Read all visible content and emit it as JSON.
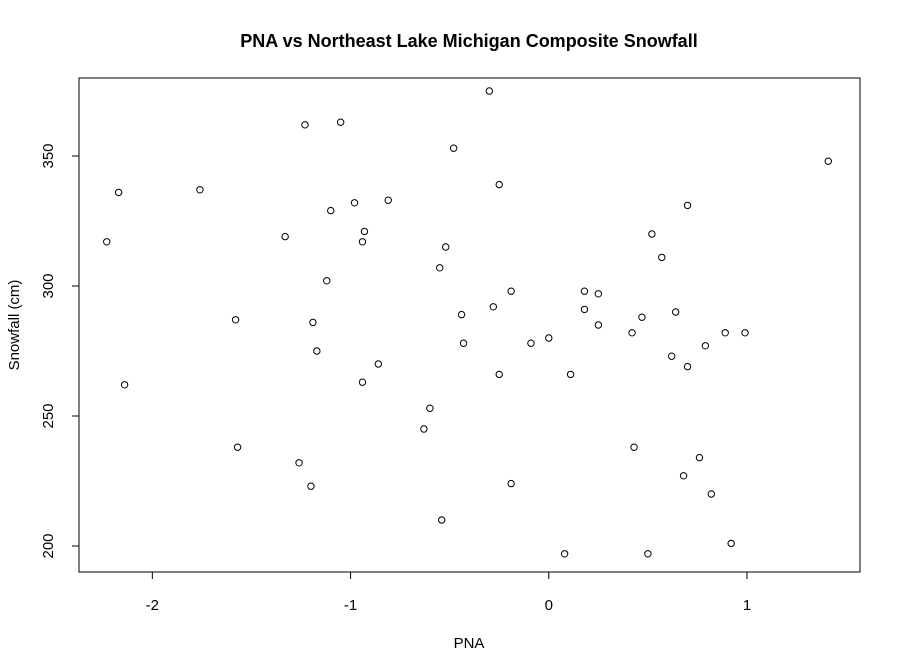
{
  "chart_data": {
    "type": "scatter",
    "title": "PNA vs Northeast Lake Michigan Composite Snowfall",
    "xlabel": "PNA",
    "ylabel": "Snowfall (cm)",
    "xlim": [
      -2.37,
      1.57
    ],
    "ylim": [
      190,
      380
    ],
    "x_ticks": [
      -2,
      -1,
      0,
      1
    ],
    "x_tick_labels": [
      "-2",
      "-1",
      "0",
      "1"
    ],
    "y_ticks": [
      200,
      250,
      300,
      350
    ],
    "y_tick_labels": [
      "200",
      "250",
      "300",
      "350"
    ],
    "grid": false,
    "legend": "none",
    "point_symbol": "open-circle",
    "point_color": "#000000",
    "points": [
      {
        "x": -2.23,
        "y": 317
      },
      {
        "x": -2.17,
        "y": 336
      },
      {
        "x": -2.14,
        "y": 262
      },
      {
        "x": -1.76,
        "y": 337
      },
      {
        "x": -1.58,
        "y": 287
      },
      {
        "x": -1.57,
        "y": 238
      },
      {
        "x": -1.33,
        "y": 319
      },
      {
        "x": -1.26,
        "y": 232
      },
      {
        "x": -1.23,
        "y": 362
      },
      {
        "x": -1.2,
        "y": 223
      },
      {
        "x": -1.19,
        "y": 286
      },
      {
        "x": -1.17,
        "y": 275
      },
      {
        "x": -1.12,
        "y": 302
      },
      {
        "x": -1.1,
        "y": 329
      },
      {
        "x": -1.05,
        "y": 363
      },
      {
        "x": -0.98,
        "y": 332
      },
      {
        "x": -0.94,
        "y": 317
      },
      {
        "x": -0.94,
        "y": 263
      },
      {
        "x": -0.93,
        "y": 321
      },
      {
        "x": -0.86,
        "y": 270
      },
      {
        "x": -0.81,
        "y": 333
      },
      {
        "x": -0.63,
        "y": 245
      },
      {
        "x": -0.6,
        "y": 253
      },
      {
        "x": -0.55,
        "y": 307
      },
      {
        "x": -0.54,
        "y": 210
      },
      {
        "x": -0.52,
        "y": 315
      },
      {
        "x": -0.48,
        "y": 353
      },
      {
        "x": -0.44,
        "y": 289
      },
      {
        "x": -0.43,
        "y": 278
      },
      {
        "x": -0.3,
        "y": 375
      },
      {
        "x": -0.28,
        "y": 292
      },
      {
        "x": -0.25,
        "y": 339
      },
      {
        "x": -0.25,
        "y": 266
      },
      {
        "x": -0.19,
        "y": 298
      },
      {
        "x": -0.19,
        "y": 224
      },
      {
        "x": -0.09,
        "y": 278
      },
      {
        "x": 0.0,
        "y": 280
      },
      {
        "x": 0.08,
        "y": 197
      },
      {
        "x": 0.11,
        "y": 266
      },
      {
        "x": 0.18,
        "y": 291
      },
      {
        "x": 0.18,
        "y": 298
      },
      {
        "x": 0.25,
        "y": 285
      },
      {
        "x": 0.25,
        "y": 297
      },
      {
        "x": 0.42,
        "y": 282
      },
      {
        "x": 0.43,
        "y": 238
      },
      {
        "x": 0.47,
        "y": 288
      },
      {
        "x": 0.5,
        "y": 197
      },
      {
        "x": 0.52,
        "y": 320
      },
      {
        "x": 0.57,
        "y": 311
      },
      {
        "x": 0.62,
        "y": 273
      },
      {
        "x": 0.64,
        "y": 290
      },
      {
        "x": 0.68,
        "y": 227
      },
      {
        "x": 0.7,
        "y": 331
      },
      {
        "x": 0.7,
        "y": 269
      },
      {
        "x": 0.76,
        "y": 234
      },
      {
        "x": 0.79,
        "y": 277
      },
      {
        "x": 0.82,
        "y": 220
      },
      {
        "x": 0.89,
        "y": 282
      },
      {
        "x": 0.92,
        "y": 201
      },
      {
        "x": 0.99,
        "y": 282
      },
      {
        "x": 1.41,
        "y": 348
      }
    ]
  }
}
